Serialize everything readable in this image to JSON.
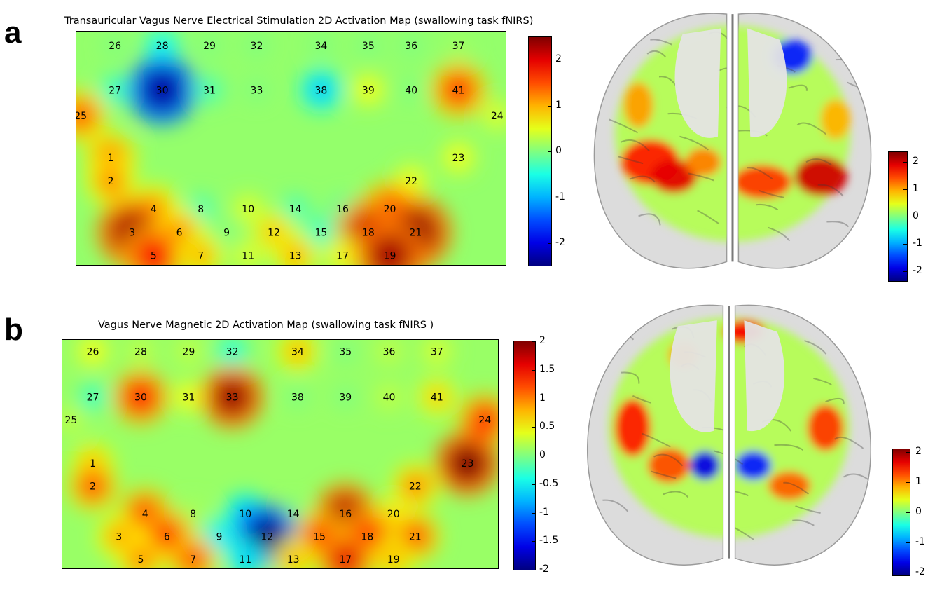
{
  "panels": [
    {
      "letter": "a",
      "title": "Transauricular Vagus Nerve Electrical Stimulation 2D Activation Map (swallowing task fNIRS)",
      "map_colorbar_ticks": [
        "2",
        "1",
        "0",
        "-1",
        "-2"
      ],
      "brain_colorbar_ticks": [
        "2",
        "1",
        "0",
        "-1",
        "-2"
      ]
    },
    {
      "letter": "b",
      "title": "Vagus Nerve Magnetic 2D Activation Map (swallowing task fNIRS )",
      "map_colorbar_ticks": [
        "2",
        "1.5",
        "1",
        "0.5",
        "0",
        "-0.5",
        "-1",
        "-1.5",
        "-2"
      ],
      "brain_colorbar_ticks": [
        "2",
        "1",
        "0",
        "-1",
        "-2"
      ]
    }
  ],
  "chart_data": [
    {
      "type": "heatmap",
      "title": "Transauricular Vagus Nerve Electrical Stimulation 2D Activation Map (swallowing task fNIRS)",
      "colormap": "jet",
      "clim": [
        -2.5,
        2.5
      ],
      "channels": [
        {
          "id": "26",
          "x": 0.09,
          "y": 0.06,
          "value": 0
        },
        {
          "id": "28",
          "x": 0.2,
          "y": 0.06,
          "value": -0.6
        },
        {
          "id": "29",
          "x": 0.31,
          "y": 0.06,
          "value": 0
        },
        {
          "id": "32",
          "x": 0.42,
          "y": 0.06,
          "value": 0
        },
        {
          "id": "34",
          "x": 0.57,
          "y": 0.06,
          "value": 0
        },
        {
          "id": "35",
          "x": 0.68,
          "y": 0.06,
          "value": 0
        },
        {
          "id": "36",
          "x": 0.78,
          "y": 0.06,
          "value": 0
        },
        {
          "id": "37",
          "x": 0.89,
          "y": 0.06,
          "value": 0.2
        },
        {
          "id": "27",
          "x": 0.09,
          "y": 0.25,
          "value": -0.4
        },
        {
          "id": "30",
          "x": 0.2,
          "y": 0.25,
          "value": -2.3
        },
        {
          "id": "31",
          "x": 0.31,
          "y": 0.25,
          "value": -0.3
        },
        {
          "id": "33",
          "x": 0.42,
          "y": 0.25,
          "value": 0
        },
        {
          "id": "38",
          "x": 0.57,
          "y": 0.25,
          "value": -0.9
        },
        {
          "id": "39",
          "x": 0.68,
          "y": 0.25,
          "value": 0.6
        },
        {
          "id": "40",
          "x": 0.78,
          "y": 0.25,
          "value": 0
        },
        {
          "id": "41",
          "x": 0.89,
          "y": 0.25,
          "value": 1.6
        },
        {
          "id": "25",
          "x": 0.01,
          "y": 0.36,
          "value": 1.4
        },
        {
          "id": "24",
          "x": 0.98,
          "y": 0.36,
          "value": 0.5
        },
        {
          "id": "1",
          "x": 0.08,
          "y": 0.54,
          "value": 1.3
        },
        {
          "id": "23",
          "x": 0.89,
          "y": 0.54,
          "value": 0.6
        },
        {
          "id": "2",
          "x": 0.08,
          "y": 0.64,
          "value": 1.2
        },
        {
          "id": "22",
          "x": 0.78,
          "y": 0.64,
          "value": 0.6
        },
        {
          "id": "4",
          "x": 0.18,
          "y": 0.76,
          "value": 1.2
        },
        {
          "id": "8",
          "x": 0.29,
          "y": 0.76,
          "value": -0.3
        },
        {
          "id": "10",
          "x": 0.4,
          "y": 0.76,
          "value": 0.5
        },
        {
          "id": "14",
          "x": 0.51,
          "y": 0.76,
          "value": -0.3
        },
        {
          "id": "16",
          "x": 0.62,
          "y": 0.76,
          "value": -0.2
        },
        {
          "id": "20",
          "x": 0.73,
          "y": 0.76,
          "value": 1.6
        },
        {
          "id": "3",
          "x": 0.13,
          "y": 0.86,
          "value": 2.3
        },
        {
          "id": "6",
          "x": 0.24,
          "y": 0.86,
          "value": 1.2
        },
        {
          "id": "9",
          "x": 0.35,
          "y": 0.86,
          "value": 0
        },
        {
          "id": "12",
          "x": 0.46,
          "y": 0.86,
          "value": 0.9
        },
        {
          "id": "15",
          "x": 0.57,
          "y": 0.86,
          "value": -0.4
        },
        {
          "id": "18",
          "x": 0.68,
          "y": 0.86,
          "value": 2.1
        },
        {
          "id": "21",
          "x": 0.79,
          "y": 0.86,
          "value": 2.4
        },
        {
          "id": "5",
          "x": 0.18,
          "y": 0.96,
          "value": 1.9
        },
        {
          "id": "7",
          "x": 0.29,
          "y": 0.96,
          "value": 1.0
        },
        {
          "id": "11",
          "x": 0.4,
          "y": 0.96,
          "value": 0.5
        },
        {
          "id": "13",
          "x": 0.51,
          "y": 0.96,
          "value": 1.0
        },
        {
          "id": "17",
          "x": 0.62,
          "y": 0.96,
          "value": 0.7
        },
        {
          "id": "19",
          "x": 0.73,
          "y": 0.96,
          "value": 2.3
        }
      ]
    },
    {
      "type": "heatmap",
      "title": "Vagus Nerve Magnetic 2D Activation Map (swallowing task fNIRS )",
      "colormap": "jet",
      "clim": [
        -2,
        2
      ],
      "channels": [
        {
          "id": "26",
          "x": 0.07,
          "y": 0.05,
          "value": 0.5
        },
        {
          "id": "28",
          "x": 0.18,
          "y": 0.05,
          "value": 0.3
        },
        {
          "id": "29",
          "x": 0.29,
          "y": 0.05,
          "value": 0.3
        },
        {
          "id": "32",
          "x": 0.39,
          "y": 0.05,
          "value": -0.4
        },
        {
          "id": "34",
          "x": 0.54,
          "y": 0.05,
          "value": 0.8
        },
        {
          "id": "35",
          "x": 0.65,
          "y": 0.05,
          "value": 0
        },
        {
          "id": "36",
          "x": 0.75,
          "y": 0.05,
          "value": 0.3
        },
        {
          "id": "37",
          "x": 0.86,
          "y": 0.05,
          "value": 0.4
        },
        {
          "id": "27",
          "x": 0.07,
          "y": 0.25,
          "value": -0.3
        },
        {
          "id": "30",
          "x": 0.18,
          "y": 0.25,
          "value": 1.5
        },
        {
          "id": "31",
          "x": 0.29,
          "y": 0.25,
          "value": 0.5
        },
        {
          "id": "33",
          "x": 0.39,
          "y": 0.25,
          "value": 1.9
        },
        {
          "id": "38",
          "x": 0.54,
          "y": 0.25,
          "value": 0
        },
        {
          "id": "39",
          "x": 0.65,
          "y": 0.25,
          "value": 0
        },
        {
          "id": "40",
          "x": 0.75,
          "y": 0.25,
          "value": 0.3
        },
        {
          "id": "41",
          "x": 0.86,
          "y": 0.25,
          "value": 0.7
        },
        {
          "id": "25",
          "x": 0.02,
          "y": 0.35,
          "value": 0.3
        },
        {
          "id": "24",
          "x": 0.97,
          "y": 0.35,
          "value": 1.4
        },
        {
          "id": "1",
          "x": 0.07,
          "y": 0.54,
          "value": 0.8
        },
        {
          "id": "23",
          "x": 0.93,
          "y": 0.54,
          "value": 2.0
        },
        {
          "id": "2",
          "x": 0.07,
          "y": 0.64,
          "value": 1.2
        },
        {
          "id": "22",
          "x": 0.81,
          "y": 0.64,
          "value": 1.0
        },
        {
          "id": "4",
          "x": 0.19,
          "y": 0.76,
          "value": 1.3
        },
        {
          "id": "8",
          "x": 0.3,
          "y": 0.76,
          "value": 0.2
        },
        {
          "id": "10",
          "x": 0.42,
          "y": 0.76,
          "value": -0.8
        },
        {
          "id": "14",
          "x": 0.53,
          "y": 0.76,
          "value": 0
        },
        {
          "id": "16",
          "x": 0.65,
          "y": 0.76,
          "value": 1.8
        },
        {
          "id": "20",
          "x": 0.76,
          "y": 0.76,
          "value": 0.6
        },
        {
          "id": "3",
          "x": 0.13,
          "y": 0.86,
          "value": 0.9
        },
        {
          "id": "6",
          "x": 0.24,
          "y": 0.86,
          "value": 1.4
        },
        {
          "id": "9",
          "x": 0.36,
          "y": 0.86,
          "value": -0.6
        },
        {
          "id": "12",
          "x": 0.47,
          "y": 0.86,
          "value": -2.0
        },
        {
          "id": "15",
          "x": 0.59,
          "y": 0.86,
          "value": 1.3
        },
        {
          "id": "18",
          "x": 0.7,
          "y": 0.86,
          "value": 1.5
        },
        {
          "id": "21",
          "x": 0.81,
          "y": 0.86,
          "value": 1.2
        },
        {
          "id": "5",
          "x": 0.18,
          "y": 0.96,
          "value": 1.0
        },
        {
          "id": "7",
          "x": 0.3,
          "y": 0.96,
          "value": 1.2
        },
        {
          "id": "11",
          "x": 0.42,
          "y": 0.96,
          "value": -0.7
        },
        {
          "id": "13",
          "x": 0.53,
          "y": 0.96,
          "value": 0.8
        },
        {
          "id": "17",
          "x": 0.65,
          "y": 0.96,
          "value": 1.6
        },
        {
          "id": "19",
          "x": 0.76,
          "y": 0.96,
          "value": 0.8
        }
      ]
    }
  ]
}
